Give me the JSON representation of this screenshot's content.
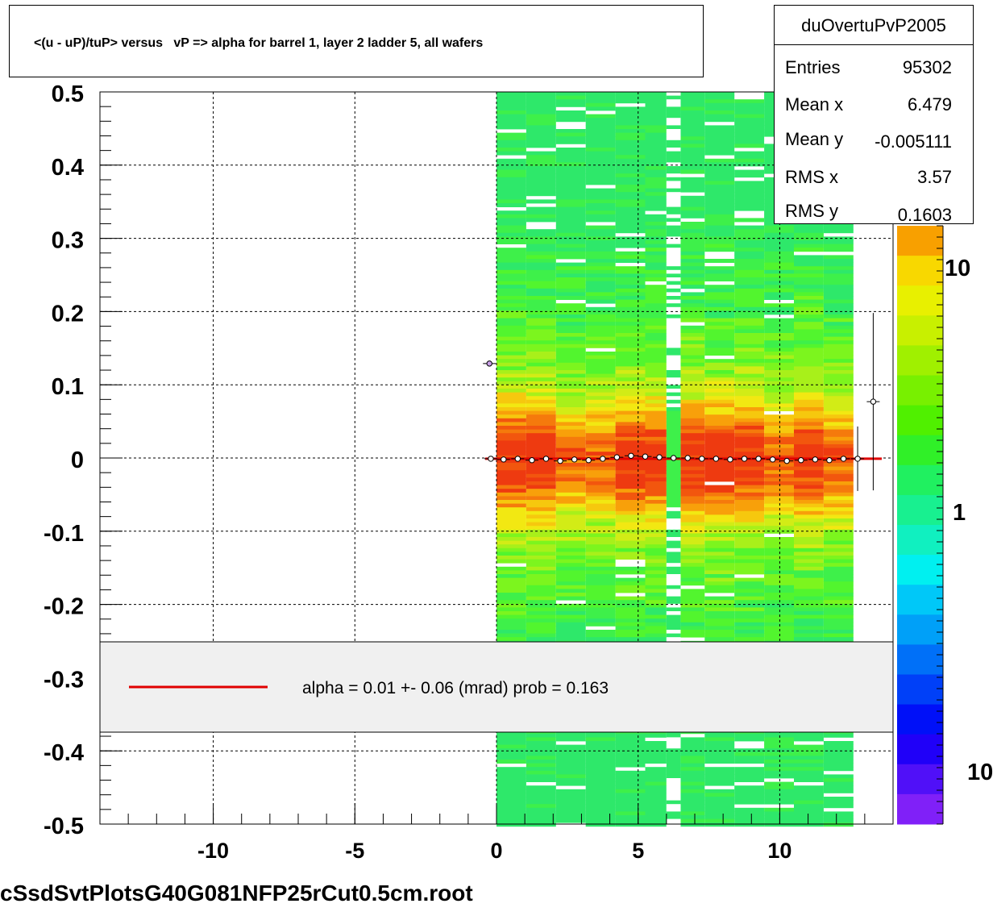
{
  "title": "<(u - uP)/tuP> versus   vP => alpha for barrel 1, layer 2 ladder 5, all wafers",
  "footer": "cSsdSvtPlotsG40G081NFP25rCut0.5cm.root",
  "stats": {
    "name": "duOvertuPvP2005",
    "rows": [
      {
        "label": "Entries",
        "value": "95302"
      },
      {
        "label": "Mean x",
        "value": "6.479"
      },
      {
        "label": "Mean y",
        "value": "-0.005111"
      },
      {
        "label": "RMS x",
        "value": "3.57"
      },
      {
        "label": "RMS y",
        "value": "0.1603"
      }
    ]
  },
  "legend": {
    "text": "alpha =    0.01 +-  0.06 (mrad) prob = 0.163",
    "line_color": "#e00000"
  },
  "palette_labels": [
    "10",
    "1",
    "10"
  ],
  "chart_data": {
    "type": "heatmap",
    "x_range": [
      -14,
      14
    ],
    "y_range": [
      -0.5,
      0.5
    ],
    "x_ticks": [
      "-10",
      "-5",
      "0",
      "5",
      "10"
    ],
    "x_tick_values": [
      -10,
      -5,
      0,
      5,
      10
    ],
    "y_ticks": [
      "0.5",
      "0.4",
      "0.3",
      "0.2",
      "0.1",
      "0",
      "-0.1",
      "-0.2",
      "-0.3",
      "-0.4",
      "-0.5"
    ],
    "y_tick_values": [
      0.5,
      0.4,
      0.3,
      0.2,
      0.1,
      0,
      -0.1,
      -0.2,
      -0.3,
      -0.4,
      -0.5
    ],
    "grid": true,
    "heatmap_x_extent": [
      0,
      12.6
    ],
    "heatmap_gap_x": [
      6.0,
      6.5
    ],
    "profile_points": [
      {
        "x": -0.25,
        "y": 0.129
      },
      {
        "x": -0.2,
        "y": -0.001
      },
      {
        "x": 0.25,
        "y": -0.002
      },
      {
        "x": 0.75,
        "y": -0.001
      },
      {
        "x": 1.25,
        "y": -0.003
      },
      {
        "x": 1.75,
        "y": -0.001
      },
      {
        "x": 2.25,
        "y": -0.004
      },
      {
        "x": 2.75,
        "y": -0.002
      },
      {
        "x": 3.25,
        "y": -0.003
      },
      {
        "x": 3.75,
        "y": -0.001
      },
      {
        "x": 4.25,
        "y": 0.001
      },
      {
        "x": 4.75,
        "y": 0.003
      },
      {
        "x": 5.25,
        "y": 0.002
      },
      {
        "x": 5.75,
        "y": 0.001
      },
      {
        "x": 6.25,
        "y": 0.0
      },
      {
        "x": 6.75,
        "y": 0.0
      },
      {
        "x": 7.25,
        "y": -0.001
      },
      {
        "x": 7.75,
        "y": -0.001
      },
      {
        "x": 8.25,
        "y": -0.002
      },
      {
        "x": 8.75,
        "y": -0.001
      },
      {
        "x": 9.25,
        "y": -0.001
      },
      {
        "x": 9.75,
        "y": -0.002
      },
      {
        "x": 10.25,
        "y": -0.004
      },
      {
        "x": 10.75,
        "y": -0.003
      },
      {
        "x": 11.25,
        "y": -0.002
      },
      {
        "x": 11.75,
        "y": -0.003
      },
      {
        "x": 12.25,
        "y": -0.001
      },
      {
        "x": 12.75,
        "y": -0.001
      },
      {
        "x": 13.3,
        "y": 0.077
      }
    ],
    "fit_line": {
      "x0": -0.4,
      "x1": 13.6,
      "y": -0.001,
      "color": "#e00000"
    }
  }
}
